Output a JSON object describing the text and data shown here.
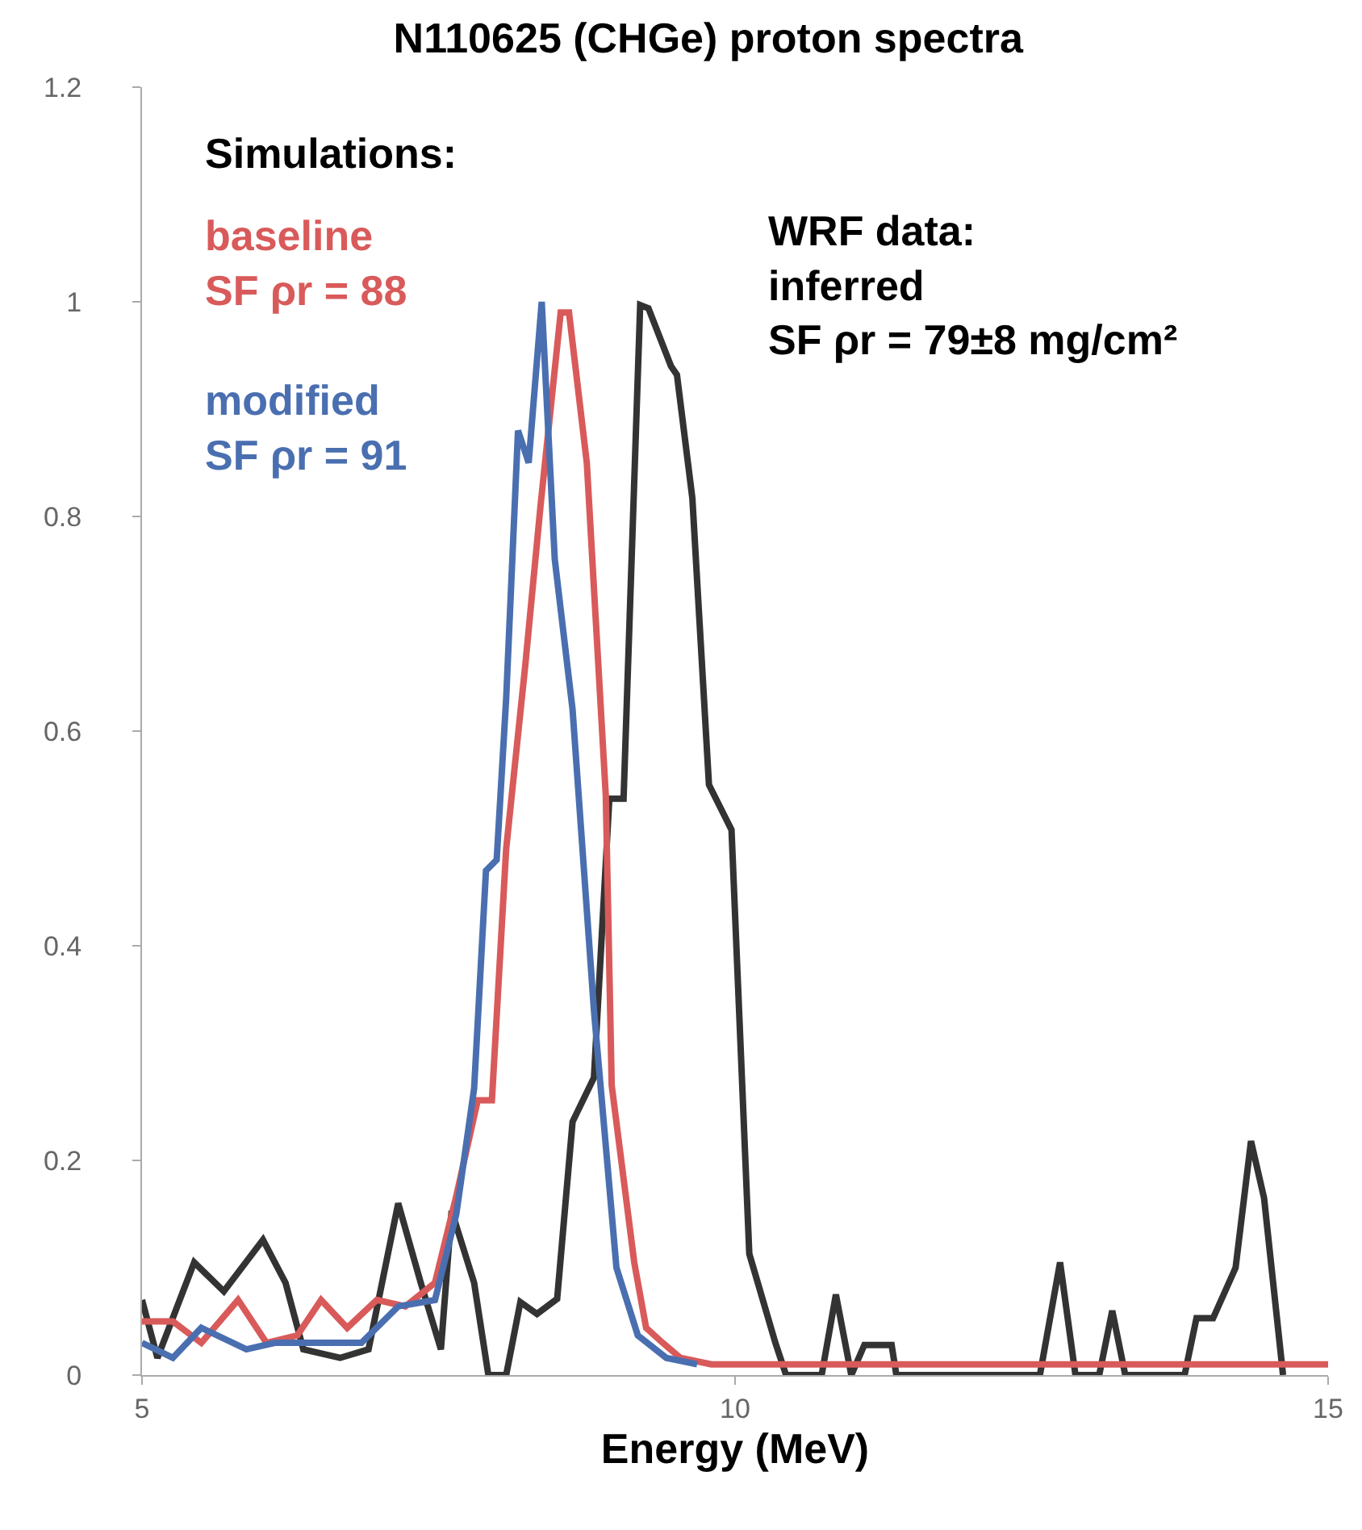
{
  "chart_data": {
    "type": "line",
    "title": "N110625 (CHGe) proton spectra",
    "xlabel": "Energy (MeV)",
    "xlim": [
      5,
      15
    ],
    "xticks": [
      5,
      10,
      15
    ],
    "ylim": [
      0,
      1.2
    ],
    "yticks": [
      0,
      0.2,
      0.4,
      0.6,
      0.8,
      1,
      1.2
    ],
    "grid": false,
    "legend": false,
    "marker": "none",
    "line_style": "solid",
    "annotations": [
      "Simulations:",
      "WRF data:\ninferred\nSF ρr = 79±8 mg/cm²"
    ],
    "series": [
      {
        "color": "#333333",
        "x": [
          5.0,
          5.13,
          5.44,
          5.69,
          6.02,
          6.21,
          6.36,
          6.67,
          6.91,
          7.16,
          7.35,
          7.52,
          7.61,
          7.8,
          7.92,
          8.07,
          8.19,
          8.33,
          8.5,
          8.63,
          8.81,
          8.94,
          9.06,
          9.2,
          9.27,
          9.46,
          9.51,
          9.64,
          9.78,
          9.97,
          10.12,
          10.34,
          10.43,
          10.73,
          10.85,
          10.98,
          11.09,
          11.32,
          11.36,
          12.57,
          12.74,
          12.87,
          13.07,
          13.18,
          13.29,
          13.79,
          13.89,
          14.03,
          14.22,
          14.35,
          14.46,
          14.62
        ],
        "values": [
          0.07,
          0.016,
          0.105,
          0.078,
          0.126,
          0.086,
          0.024,
          0.016,
          0.024,
          0.16,
          0.086,
          0.024,
          0.153,
          0.086,
          0,
          0,
          0.068,
          0.057,
          0.071,
          0.236,
          0.277,
          0.537,
          0.537,
          0.997,
          0.994,
          0.94,
          0.932,
          0.817,
          0.55,
          0.508,
          0.113,
          0.03,
          0,
          0,
          0.075,
          0,
          0.028,
          0.028,
          0,
          0,
          0.105,
          0,
          0,
          0.06,
          0,
          0,
          0.053,
          0.053,
          0.1,
          0.218,
          0.165,
          0
        ]
      },
      {
        "name": "baseline\nSF ρr = 88",
        "color": "#d95a5a",
        "x": [
          5.0,
          5.26,
          5.5,
          5.81,
          6.05,
          6.31,
          6.51,
          6.73,
          6.98,
          7.22,
          7.47,
          7.65,
          7.83,
          7.95,
          8.07,
          8.23,
          8.36,
          8.53,
          8.6,
          8.75,
          8.91,
          8.96,
          9.15,
          9.25,
          9.39,
          9.54,
          9.8,
          15.0
        ],
        "values": [
          0.05,
          0.05,
          0.03,
          0.07,
          0.03,
          0.037,
          0.07,
          0.044,
          0.07,
          0.064,
          0.086,
          0.167,
          0.256,
          0.256,
          0.49,
          0.66,
          0.81,
          0.99,
          0.99,
          0.85,
          0.54,
          0.27,
          0.105,
          0.044,
          0.03,
          0.016,
          0.01,
          0.01
        ]
      },
      {
        "name": "modified\nSF ρr = 91",
        "color": "#4a6fb0",
        "x": [
          5.0,
          5.26,
          5.5,
          5.88,
          6.12,
          6.48,
          6.85,
          7.16,
          7.47,
          7.65,
          7.8,
          7.9,
          7.99,
          8.07,
          8.17,
          8.26,
          8.37,
          8.48,
          8.63,
          8.81,
          9.0,
          9.18,
          9.42,
          9.68
        ],
        "values": [
          0.03,
          0.016,
          0.044,
          0.024,
          0.03,
          0.03,
          0.03,
          0.064,
          0.07,
          0.15,
          0.267,
          0.47,
          0.48,
          0.63,
          0.88,
          0.85,
          1.0,
          0.76,
          0.62,
          0.34,
          0.1,
          0.037,
          0.016,
          0.01
        ]
      }
    ]
  }
}
